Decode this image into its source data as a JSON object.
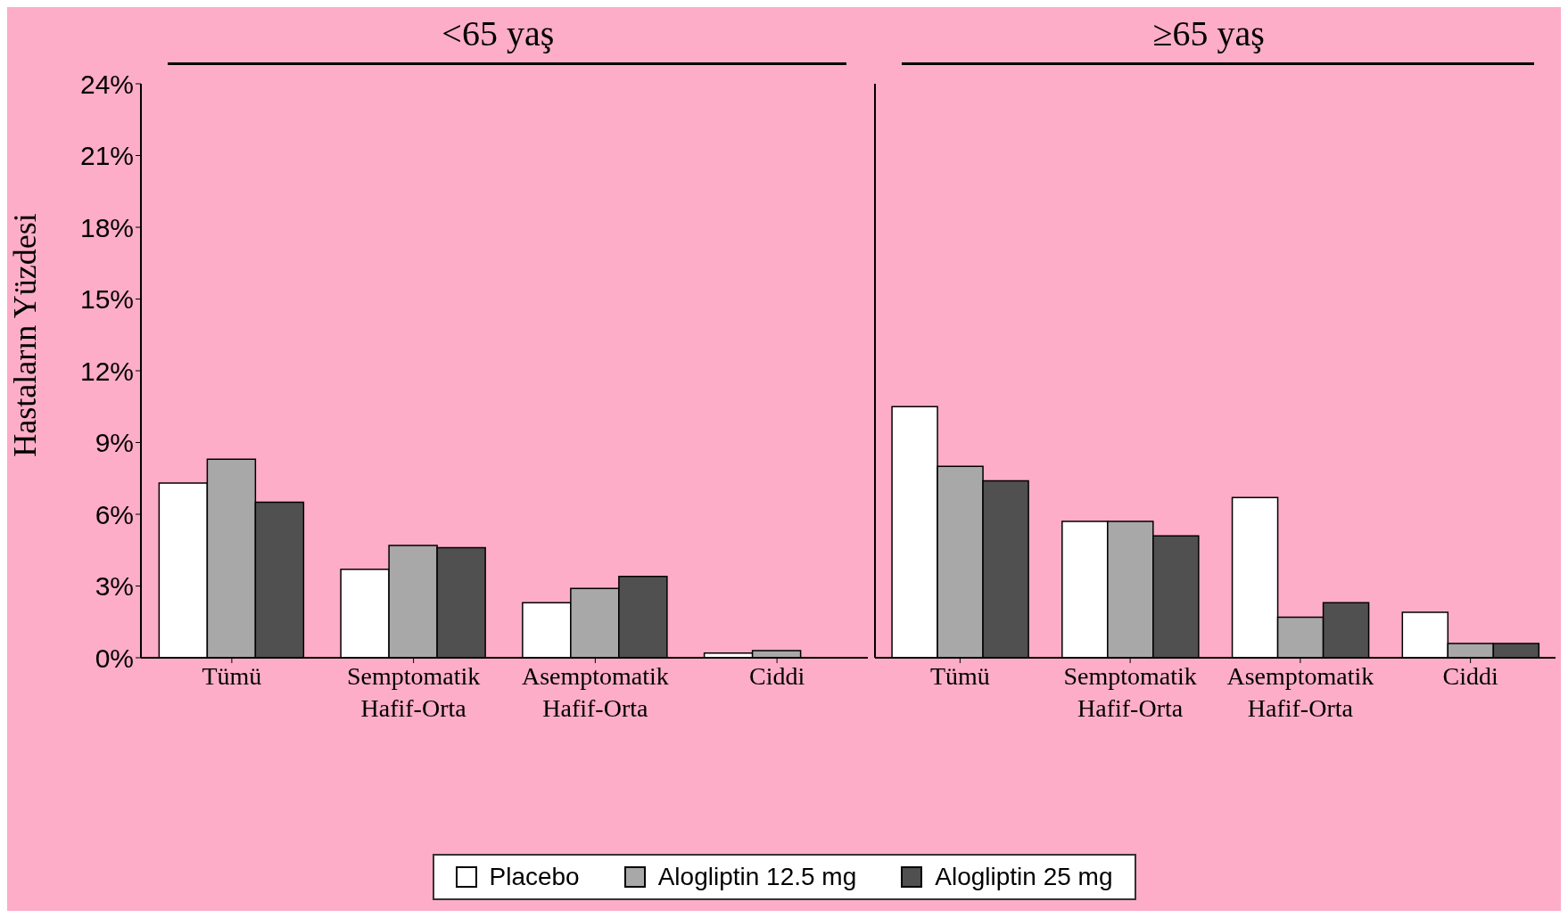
{
  "chart_data": [
    {
      "type": "bar",
      "title": "<65 yaş",
      "ylabel": "Hastaların Yüzdesi",
      "categories": [
        "Tümü",
        "Semptomatik\nHafif-Orta",
        "Asemptomatik\nHafif-Orta",
        "Ciddi"
      ],
      "series": [
        {
          "name": "Placebo",
          "color": "#ffffff",
          "values": [
            7.3,
            3.7,
            2.3,
            0.2
          ]
        },
        {
          "name": "Alogliptin 12.5 mg",
          "color": "#a8a8a8",
          "values": [
            8.3,
            4.7,
            2.9,
            0.3
          ]
        },
        {
          "name": "Alogliptin 25 mg",
          "color": "#505050",
          "values": [
            6.5,
            4.6,
            3.4,
            0
          ]
        }
      ],
      "ylim": [
        0,
        24
      ],
      "yticks": [
        {
          "value": 0,
          "label": "0%"
        },
        {
          "value": 3,
          "label": "3%"
        },
        {
          "value": 6,
          "label": "6%"
        },
        {
          "value": 9,
          "label": "9%"
        },
        {
          "value": 12,
          "label": "12%"
        },
        {
          "value": 15,
          "label": "15%"
        },
        {
          "value": 18,
          "label": "18%"
        },
        {
          "value": 21,
          "label": "21%"
        },
        {
          "value": 24,
          "label": "24%"
        }
      ],
      "legend": "bottom"
    },
    {
      "type": "bar",
      "title": "≥65 yaş",
      "categories": [
        "Tümü",
        "Semptomatik\nHafif-Orta",
        "Asemptomatik\nHafif-Orta",
        "Ciddi"
      ],
      "series": [
        {
          "color": "#ffffff",
          "values": [
            10.5,
            5.7,
            6.7,
            1.9
          ]
        },
        {
          "color": "#a8a8a8",
          "values": [
            8.0,
            5.7,
            1.7,
            0.6
          ]
        },
        {
          "color": "#505050",
          "values": [
            7.4,
            5.1,
            2.3,
            0.6
          ]
        }
      ],
      "ylim": [
        0,
        24
      ],
      "tick_labels": "x"
    }
  ]
}
